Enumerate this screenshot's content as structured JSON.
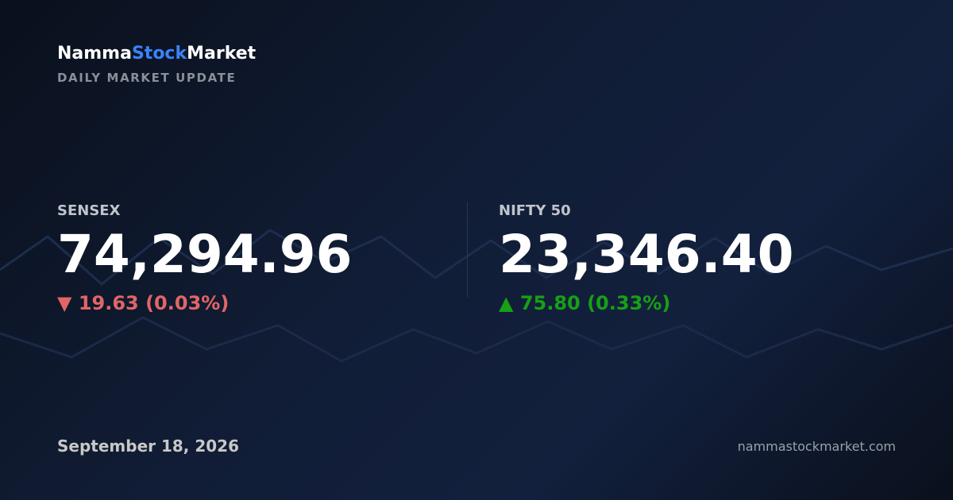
{
  "brand": {
    "part1": "Namma",
    "part2": "Stock",
    "part3": "Market"
  },
  "tagline": "DAILY MARKET UPDATE",
  "indices": [
    {
      "name": "SENSEX",
      "value": "74,294.96",
      "change": "▼ 19.63 (0.03%)"
    },
    {
      "name": "NIFTY 50",
      "value": "23,346.40",
      "change": "▲ 75.80 (0.33%)"
    }
  ],
  "date": "September 18, 2026",
  "site": "nammastockmarket.com"
}
